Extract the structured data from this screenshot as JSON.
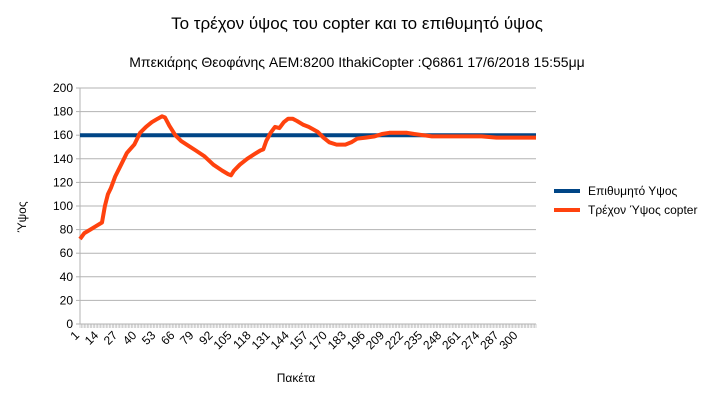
{
  "chart_data": {
    "type": "line",
    "title": "Το τρέχον ύψος του copter και το επιθυμητό ύψος",
    "subtitle": "Μπεκιάρης Θεοφάνης AEM:8200 IthakiCopter :Q6861 17/6/2018 15:55μμ",
    "xlabel": "Πακέτα",
    "ylabel": "Ύψος",
    "ylim": [
      0,
      200
    ],
    "yticks": [
      0,
      20,
      40,
      60,
      80,
      100,
      120,
      140,
      160,
      180,
      200
    ],
    "xlim": [
      1,
      312
    ],
    "xtick_labels": [
      "1",
      "14",
      "27",
      "40",
      "53",
      "66",
      "79",
      "92",
      "105",
      "118",
      "131",
      "144",
      "157",
      "170",
      "183",
      "196",
      "209",
      "222",
      "235",
      "248",
      "261",
      "274",
      "287",
      "300"
    ],
    "grid": true,
    "legend_position": "right",
    "series": [
      {
        "name": "Επιθυμητό Υψος",
        "color": "#004586",
        "points": [
          [
            1,
            160
          ],
          [
            312,
            160
          ]
        ]
      },
      {
        "name": "Τρέχον  Ύψος copter",
        "color": "#ff420e",
        "points": [
          [
            1,
            72
          ],
          [
            4,
            77
          ],
          [
            8,
            80
          ],
          [
            12,
            83
          ],
          [
            16,
            86
          ],
          [
            18,
            100
          ],
          [
            20,
            110
          ],
          [
            22,
            115
          ],
          [
            25,
            125
          ],
          [
            29,
            135
          ],
          [
            33,
            145
          ],
          [
            38,
            152
          ],
          [
            42,
            162
          ],
          [
            46,
            167
          ],
          [
            50,
            171
          ],
          [
            54,
            174
          ],
          [
            57,
            176
          ],
          [
            59,
            175
          ],
          [
            62,
            168
          ],
          [
            66,
            160
          ],
          [
            70,
            155
          ],
          [
            75,
            151
          ],
          [
            80,
            147
          ],
          [
            86,
            142
          ],
          [
            92,
            135
          ],
          [
            98,
            130
          ],
          [
            102,
            127
          ],
          [
            104,
            126
          ],
          [
            106,
            130
          ],
          [
            110,
            135
          ],
          [
            115,
            140
          ],
          [
            120,
            144
          ],
          [
            124,
            147
          ],
          [
            126,
            148
          ],
          [
            128,
            155
          ],
          [
            131,
            162
          ],
          [
            134,
            167
          ],
          [
            137,
            166
          ],
          [
            140,
            171
          ],
          [
            143,
            174
          ],
          [
            146,
            174
          ],
          [
            149,
            172
          ],
          [
            153,
            169
          ],
          [
            157,
            167
          ],
          [
            163,
            163
          ],
          [
            167,
            158
          ],
          [
            171,
            154
          ],
          [
            176,
            152
          ],
          [
            182,
            152
          ],
          [
            186,
            154
          ],
          [
            190,
            157
          ],
          [
            196,
            158
          ],
          [
            202,
            159
          ],
          [
            207,
            161
          ],
          [
            212,
            162
          ],
          [
            218,
            162
          ],
          [
            224,
            162
          ],
          [
            229,
            161
          ],
          [
            235,
            160
          ],
          [
            241,
            159
          ],
          [
            250,
            159
          ],
          [
            258,
            159
          ],
          [
            265,
            159
          ],
          [
            275,
            159
          ],
          [
            285,
            158
          ],
          [
            295,
            158
          ],
          [
            305,
            158
          ],
          [
            312,
            158
          ]
        ]
      }
    ]
  }
}
